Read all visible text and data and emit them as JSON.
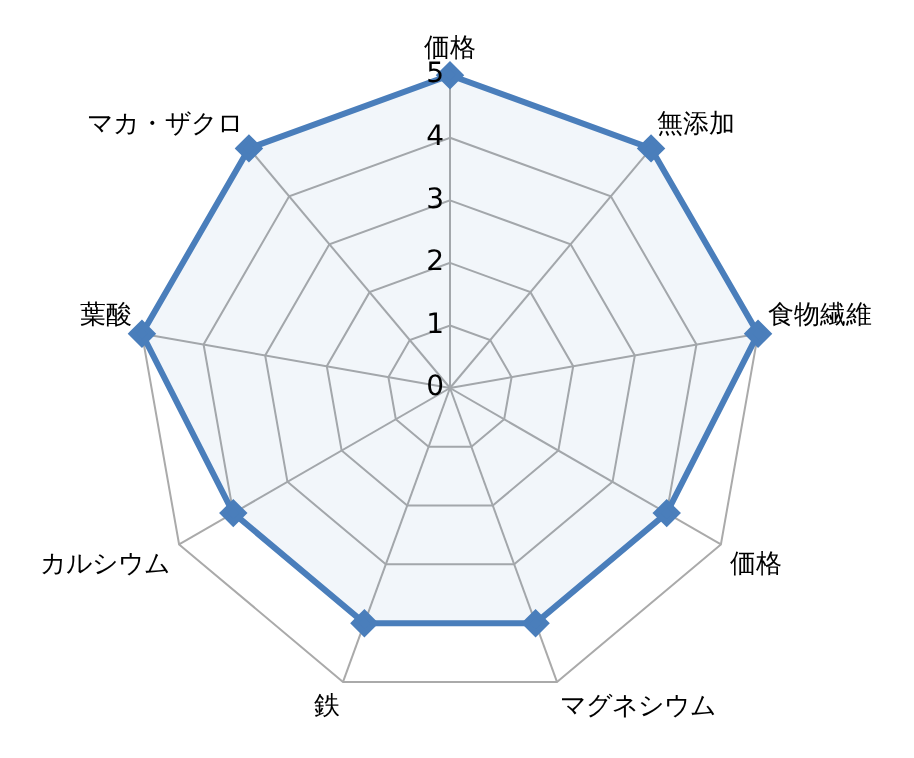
{
  "chart_data": {
    "type": "radar",
    "categories": [
      "価格",
      "無添加",
      "食物繊維",
      "価格",
      "マグネシウム",
      "鉄",
      "カルシウム",
      "葉酸",
      "マカ・ザクロ"
    ],
    "series": [
      {
        "color": "#4a7ebb",
        "values": [
          5,
          5,
          5,
          4,
          4,
          4,
          4,
          5,
          5
        ]
      }
    ],
    "ylim": [
      0,
      5
    ],
    "yticks": [
      0,
      1,
      2,
      3,
      4,
      5
    ],
    "grid": true,
    "legend": false,
    "marker": "diamond"
  }
}
